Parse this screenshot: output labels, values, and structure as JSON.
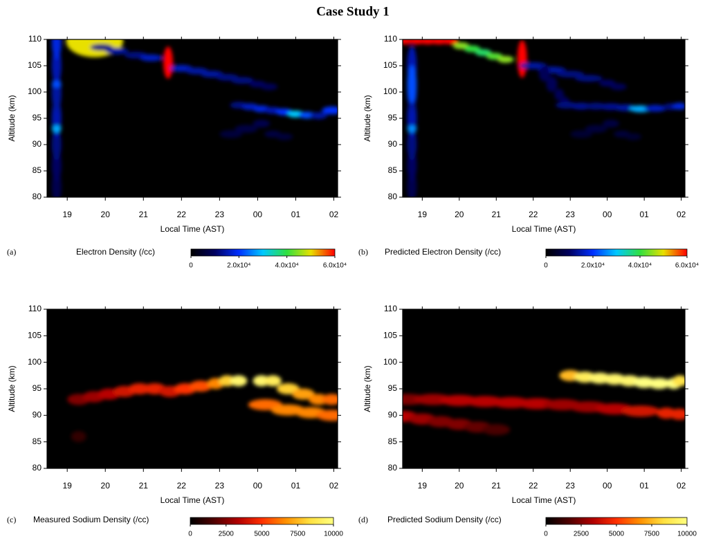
{
  "title": "Case Study 1",
  "chart_data": [
    {
      "type": "heatmap",
      "label": "(a)",
      "ylabel": "Altitude (km)",
      "xlabel": "Local Time (AST)",
      "xlim": [
        18.47,
        26.1
      ],
      "ylim": [
        80,
        110
      ],
      "xticks": [
        19,
        20,
        21,
        22,
        23,
        {
          "value": 24,
          "label": "00"
        },
        {
          "value": 25,
          "label": "01"
        },
        {
          "value": 26,
          "label": "02"
        }
      ],
      "yticks": [
        80,
        85,
        90,
        95,
        100,
        105,
        110
      ],
      "colorbar_label": "Electron Density (/cc)",
      "clim": [
        0,
        60000
      ],
      "cticks": [
        0,
        {
          "value": 20000,
          "label": "2.0x10⁴"
        },
        {
          "value": 40000,
          "label": "4.0x10⁴"
        },
        {
          "value": 60000,
          "label": "6.0x10⁴"
        }
      ],
      "colors": [
        "#000000",
        "#000060",
        "#0030ff",
        "#00c8ff",
        "#30e040",
        "#e8e000",
        "#ff0000"
      ],
      "layers": [
        {
          "x": [
            18.72,
            18.72,
            18.72,
            18.72,
            18.72,
            18.72,
            18.72
          ],
          "y": [
            82,
            86,
            90,
            95,
            100,
            105,
            109.5
          ],
          "values": [
            8000,
            10000,
            12000,
            15000,
            14000,
            15000,
            18000
          ]
        },
        {
          "x": [
            18.72,
            18.72,
            19.72,
            21.65
          ],
          "y": [
            93,
            101.5,
            109.7,
            105.6
          ],
          "values": [
            28000,
            22000,
            50000,
            60000
          ]
        },
        {
          "x": [
            19.9,
            20.3,
            20.8,
            21.2,
            22.0,
            22.4,
            22.8,
            23.2,
            23.6,
            24.0,
            24.3
          ],
          "y": [
            108.5,
            107.8,
            107,
            106.5,
            104.5,
            104,
            103.4,
            102.8,
            102.2,
            101.5,
            101
          ],
          "values": [
            12000,
            14000,
            12000,
            16000,
            16000,
            14000,
            14000,
            12000,
            12000,
            10000,
            9000
          ]
        },
        {
          "x": [
            23.5,
            23.8,
            24.1,
            24.4,
            24.7,
            25.0,
            25.3,
            25.6,
            25.95
          ],
          "y": [
            97.5,
            97.2,
            96.8,
            96.5,
            96.2,
            95.8,
            95.6,
            95.5,
            96.5
          ],
          "values": [
            12000,
            16000,
            18000,
            15000,
            20000,
            30000,
            22000,
            14000,
            20000
          ]
        },
        {
          "x": [
            23.3,
            23.7,
            24.1,
            24.4,
            24.7
          ],
          "y": [
            92,
            93,
            94,
            92,
            91.5
          ],
          "values": [
            6000,
            7000,
            8000,
            7000,
            6000
          ]
        }
      ]
    },
    {
      "type": "heatmap",
      "label": "(b)",
      "ylabel": "Altitude (km)",
      "xlabel": "Local Time (AST)",
      "xlim": [
        18.47,
        26.1
      ],
      "ylim": [
        80,
        110
      ],
      "xticks": [
        19,
        20,
        21,
        22,
        23,
        {
          "value": 24,
          "label": "00"
        },
        {
          "value": 25,
          "label": "01"
        },
        {
          "value": 26,
          "label": "02"
        }
      ],
      "yticks": [
        80,
        85,
        90,
        95,
        100,
        105,
        110
      ],
      "colorbar_label": "Predicted Electron Density (/cc)",
      "clim": [
        0,
        60000
      ],
      "cticks": [
        0,
        {
          "value": 20000,
          "label": "2.0x10⁴"
        },
        {
          "value": 40000,
          "label": "4.0x10⁴"
        },
        {
          "value": 60000,
          "label": "6.0x10⁴"
        }
      ],
      "colors": [
        "#000000",
        "#000060",
        "#0030ff",
        "#00c8ff",
        "#30e040",
        "#e8e000",
        "#ff0000"
      ],
      "layers": [
        {
          "x": [
            18.72,
            18.72,
            18.72,
            18.72,
            18.72,
            18.72
          ],
          "y": [
            82,
            86,
            90,
            95,
            100,
            105
          ],
          "values": [
            8000,
            10000,
            12000,
            15000,
            14000,
            15000
          ]
        },
        {
          "x": [
            18.55,
            18.85,
            19.15,
            19.45,
            19.75,
            20.05,
            20.35,
            20.65,
            20.95,
            21.25
          ],
          "y": [
            109.7,
            109.7,
            109.7,
            109.7,
            109.7,
            108.8,
            108.2,
            107.5,
            106.8,
            106.2
          ],
          "values": [
            60000,
            60000,
            60000,
            60000,
            60000,
            45000,
            40000,
            38000,
            42000,
            45000
          ]
        },
        {
          "x": [
            18.72,
            18.72,
            21.7
          ],
          "y": [
            93,
            101.5,
            106.3
          ],
          "values": [
            26000,
            22000,
            60000
          ]
        },
        {
          "x": [
            22.0,
            22.5,
            23.0,
            23.5,
            24.0,
            24.3
          ],
          "y": [
            105,
            104.2,
            103.4,
            102.6,
            101.7,
            101
          ],
          "values": [
            14000,
            14000,
            12000,
            12000,
            10000,
            9000
          ]
        },
        {
          "x": [
            22.3,
            22.5,
            22.7,
            22.85
          ],
          "y": [
            103.5,
            101.5,
            99.5,
            98
          ],
          "values": [
            9000,
            9000,
            9000,
            9000
          ]
        },
        {
          "x": [
            22.9,
            23.3,
            23.7,
            24.1,
            24.5,
            24.9,
            25.3,
            25.7,
            25.95
          ],
          "y": [
            97.5,
            97.3,
            97.3,
            97.2,
            97,
            96.8,
            96.9,
            97.2,
            97.3
          ],
          "values": [
            12000,
            13000,
            12000,
            13000,
            14000,
            28000,
            16000,
            12000,
            18000
          ]
        },
        {
          "x": [
            23.3,
            23.7,
            24.1,
            24.4,
            24.7
          ],
          "y": [
            92,
            93,
            94,
            92,
            91.5
          ],
          "values": [
            5000,
            6000,
            7000,
            6000,
            5000
          ]
        }
      ]
    },
    {
      "type": "heatmap",
      "label": "(c)",
      "ylabel": "Altitude (km)",
      "xlabel": "Local Time (AST)",
      "xlim": [
        18.47,
        26.1
      ],
      "ylim": [
        80,
        110
      ],
      "xticks": [
        19,
        20,
        21,
        22,
        23,
        {
          "value": 24,
          "label": "00"
        },
        {
          "value": 25,
          "label": "01"
        },
        {
          "value": 26,
          "label": "02"
        }
      ],
      "yticks": [
        80,
        85,
        90,
        95,
        100,
        105,
        110
      ],
      "colorbar_label": "Measured Sodium Density (/cc)",
      "clim": [
        0,
        10000
      ],
      "cticks": [
        0,
        2500,
        5000,
        7500,
        10000
      ],
      "colors": [
        "#000000",
        "#500000",
        "#b00000",
        "#ff3000",
        "#ff9000",
        "#ffe040",
        "#ffff80"
      ],
      "layers": [
        {
          "x": [
            19.3,
            19.7,
            20.1,
            20.5,
            20.9,
            21.3,
            21.7,
            22.1,
            22.5,
            22.9,
            23.2,
            23.5,
            24.1,
            24.4,
            24.8,
            25.2,
            25.6,
            25.95
          ],
          "y": [
            93,
            93.5,
            94,
            94.5,
            95,
            95,
            94.5,
            95,
            95.5,
            96,
            96.5,
            96.5,
            96.5,
            96.5,
            95,
            94,
            93,
            93
          ],
          "values": [
            2500,
            3000,
            3500,
            4000,
            4500,
            4500,
            4000,
            5000,
            5500,
            6500,
            8000,
            9500,
            9500,
            9000,
            8000,
            7000,
            6500,
            6000
          ]
        },
        {
          "x": [
            24.2,
            24.8,
            25.4,
            25.95
          ],
          "y": [
            92,
            91,
            90.5,
            90
          ],
          "values": [
            6000,
            6500,
            6500,
            6000
          ]
        },
        {
          "x": [
            19.3
          ],
          "y": [
            86
          ],
          "values": [
            1000
          ]
        }
      ]
    },
    {
      "type": "heatmap",
      "label": "(d)",
      "ylabel": "Altitude (km)",
      "xlabel": "Local Time (AST)",
      "xlim": [
        18.47,
        26.1
      ],
      "ylim": [
        80,
        110
      ],
      "xticks": [
        19,
        20,
        21,
        22,
        23,
        {
          "value": 24,
          "label": "00"
        },
        {
          "value": 25,
          "label": "01"
        },
        {
          "value": 26,
          "label": "02"
        }
      ],
      "yticks": [
        80,
        85,
        90,
        95,
        100,
        105,
        110
      ],
      "colorbar_label": "Predicted Sodium Density (/cc)",
      "clim": [
        0,
        10000
      ],
      "cticks": [
        0,
        2500,
        5000,
        7500,
        10000
      ],
      "colors": [
        "#000000",
        "#500000",
        "#b00000",
        "#ff3000",
        "#ff9000",
        "#ffe040",
        "#ffff80"
      ],
      "layers": [
        {
          "x": [
            23.0,
            23.4,
            23.8,
            24.2,
            24.6,
            25.0,
            25.4,
            25.8,
            25.97
          ],
          "y": [
            97.5,
            97.2,
            97,
            96.8,
            96.5,
            96.2,
            96,
            96,
            96.5
          ],
          "values": [
            7500,
            9000,
            9500,
            9500,
            9500,
            10000,
            10000,
            10000,
            8500
          ]
        },
        {
          "x": [
            18.6,
            19.3,
            20,
            20.7,
            21.4,
            22.1,
            22.8,
            23.5,
            24.2,
            24.9,
            25.6,
            25.95
          ],
          "y": [
            93,
            93,
            92.8,
            92.6,
            92.4,
            92.2,
            92,
            91.6,
            91.2,
            90.8,
            90.4,
            90.2
          ],
          "values": [
            2500,
            3000,
            3500,
            3500,
            3500,
            3500,
            3000,
            3000,
            3500,
            4000,
            4500,
            4500
          ]
        },
        {
          "x": [
            18.5,
            19.0,
            19.5,
            20.0,
            20.5,
            21.0
          ],
          "y": [
            89.8,
            89.3,
            88.8,
            88.3,
            87.8,
            87.3
          ],
          "values": [
            3500,
            3000,
            2500,
            2500,
            2000,
            1500
          ]
        }
      ]
    }
  ]
}
